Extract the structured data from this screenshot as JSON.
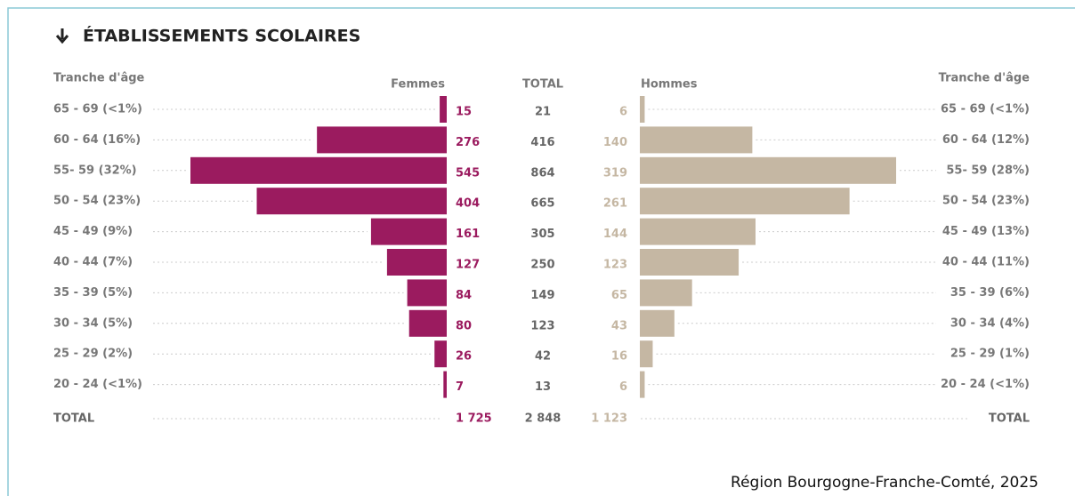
{
  "chart_data": {
    "type": "pyramid",
    "title": "ÉTABLISSEMENTS SCOLAIRES",
    "left_axis_label": "Tranche d'âge",
    "right_axis_label": "Tranche d'âge",
    "total_header": "TOTAL",
    "categories_left": [
      "65 - 69 (<1%)",
      "60 - 64 (16%)",
      "55- 59 (32%)",
      "50 - 54 (23%)",
      "45 - 49 (9%)",
      "40 - 44 (7%)",
      "35 - 39 (5%)",
      "30 - 34 (5%)",
      "25 - 29 (2%)",
      "20 - 24 (<1%)"
    ],
    "categories_right": [
      "65 - 69 (<1%)",
      "60 - 64 (12%)",
      "55- 59 (28%)",
      "50 - 54 (23%)",
      "45 - 49 (13%)",
      "40 - 44 (11%)",
      "35 - 39 (6%)",
      "30 - 34 (4%)",
      "25 - 29 (1%)",
      "20 - 24 (<1%)"
    ],
    "series": [
      {
        "name": "Femmes",
        "color": "#9b1b5f",
        "values": [
          15,
          276,
          545,
          404,
          161,
          127,
          84,
          80,
          26,
          7
        ]
      },
      {
        "name": "Hommes",
        "color": "#c5b7a3",
        "values": [
          6,
          140,
          319,
          261,
          144,
          123,
          65,
          43,
          16,
          6
        ]
      }
    ],
    "totals": [
      21,
      416,
      864,
      665,
      305,
      250,
      149,
      123,
      42,
      13
    ],
    "total_row": {
      "label": "TOTAL",
      "values": [
        1725,
        2848,
        1123
      ],
      "value_labels": [
        "1 725",
        "2 848",
        "1 123"
      ]
    },
    "source": "Région Bourgogne-Franche-Comté, 2025"
  }
}
